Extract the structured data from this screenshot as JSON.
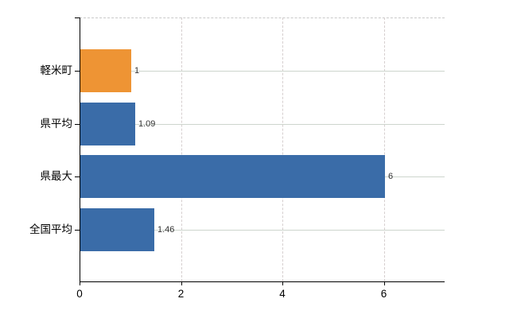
{
  "chart_data": {
    "type": "bar",
    "orientation": "horizontal",
    "categories": [
      "軽米町",
      "県平均",
      "県最大",
      "全国平均"
    ],
    "values": [
      1,
      1.09,
      6,
      1.46
    ],
    "value_labels": [
      "1",
      "1.09",
      "6",
      "1.46"
    ],
    "series": [
      {
        "name": "value",
        "values": [
          1,
          1.09,
          6,
          1.46
        ],
        "bar_colors": [
          "#ee9434",
          "#3a6ca8",
          "#3a6ca8",
          "#3a6ca8"
        ]
      }
    ],
    "title": "",
    "xlabel": "",
    "ylabel": "",
    "xlim": [
      0,
      7.2
    ],
    "xticks": [
      0,
      2,
      4,
      6
    ],
    "xtick_labels": [
      "0",
      "2",
      "4",
      "6"
    ],
    "grid": true,
    "legend": false
  },
  "colors": {
    "highlight_bar": "#ee9434",
    "default_bar": "#3a6ca8",
    "axis": "#000000",
    "gridline_horizontal": "#cdd5cd",
    "gridline_vertical_dashed": "#d6cfcf",
    "plot_top_border_dashed": "#c9c9c9",
    "category_text": "#000000",
    "value_text": "#333333",
    "background": "#ffffff"
  }
}
